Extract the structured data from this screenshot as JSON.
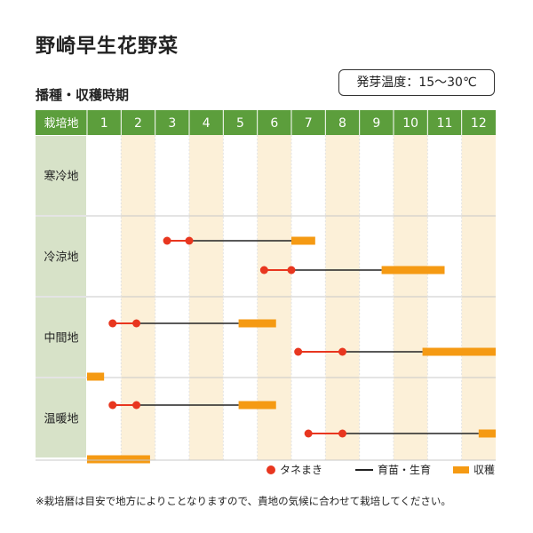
{
  "title": "野崎早生花野菜",
  "subtitle": "播種・収穫時期",
  "germination_temp": "発芽温度：15～30℃",
  "legend": {
    "sowing": "タネまき",
    "growing": "育苗・生育",
    "harvest": "収穫"
  },
  "note": "※栽培暦は目安で地方によりことなりますので、貴地の気候に合わせて栽培してください。",
  "colors": {
    "header_green": "#5c9e3c",
    "region_cell": "#d7e2c8",
    "even_month_band": "#fcf0d8",
    "sowing": "#e8361f",
    "harvest": "#f59a13",
    "growing": "#222222",
    "grid": "#c8c8c8"
  },
  "chart_data": {
    "type": "gantt",
    "header_label": "栽培地",
    "months": [
      "1",
      "2",
      "3",
      "4",
      "5",
      "6",
      "7",
      "8",
      "9",
      "10",
      "11",
      "12"
    ],
    "regions": [
      {
        "name": "寒冷地",
        "rows": []
      },
      {
        "name": "冷涼地",
        "rows": [
          {
            "sowing": [
              3.35,
              4.0
            ],
            "harvest": [
              7.0,
              7.7
            ]
          },
          {
            "sowing": [
              6.2,
              7.0
            ],
            "harvest": [
              9.65,
              11.5
            ]
          }
        ]
      },
      {
        "name": "中間地",
        "rows": [
          {
            "sowing": [
              1.75,
              2.45
            ],
            "harvest": [
              5.45,
              6.55
            ]
          },
          {
            "sowing": [
              7.2,
              8.5
            ],
            "harvest": [
              10.85,
              13.0
            ],
            "harvest_carryover": [
              1.0,
              1.5
            ]
          }
        ]
      },
      {
        "name": "温暖地",
        "rows": [
          {
            "sowing": [
              1.75,
              2.45
            ],
            "harvest": [
              5.45,
              6.55
            ]
          },
          {
            "sowing": [
              7.5,
              8.5
            ],
            "harvest": [
              12.5,
              13.0
            ],
            "harvest_carryover": [
              1.0,
              2.85
            ]
          }
        ]
      }
    ]
  }
}
